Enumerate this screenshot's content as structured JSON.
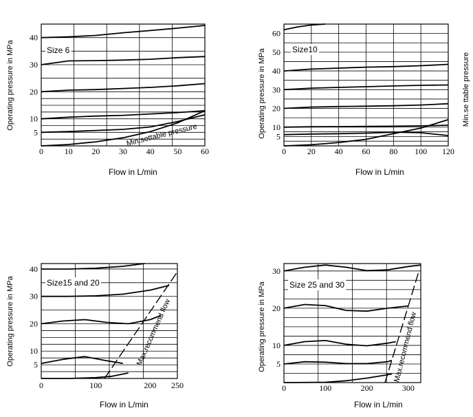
{
  "chart_data": [
    {
      "type": "line",
      "label": "Size 6",
      "xlabel": "Flow in L/min",
      "ylabel": "Operating pressure in MPa",
      "xlim": [
        0,
        60
      ],
      "ylim": [
        0,
        45
      ],
      "x_ticks": [
        0,
        10,
        20,
        30,
        40,
        50,
        60
      ],
      "y_ticks": [
        5,
        10,
        20,
        30,
        40
      ],
      "grid": true,
      "series": [
        {
          "x": [
            0,
            10,
            20,
            30,
            40,
            50,
            60
          ],
          "y": [
            40,
            40.3,
            40.8,
            41.8,
            42.6,
            43.5,
            44.5
          ]
        },
        {
          "x": [
            0,
            10,
            20,
            30,
            40,
            50,
            60
          ],
          "y": [
            30,
            31.4,
            31.5,
            31.7,
            32,
            32.6,
            33
          ]
        },
        {
          "x": [
            0,
            10,
            20,
            30,
            40,
            50,
            60
          ],
          "y": [
            20,
            20.6,
            20.8,
            21.2,
            21.6,
            22.2,
            23
          ]
        },
        {
          "x": [
            0,
            10,
            20,
            30,
            40,
            50,
            60
          ],
          "y": [
            10,
            10.6,
            11,
            11.3,
            11.8,
            12.3,
            13
          ]
        },
        {
          "x": [
            0,
            10,
            20,
            30,
            40,
            50,
            60
          ],
          "y": [
            5,
            5.3,
            5.7,
            6.1,
            7,
            9,
            11.5
          ]
        },
        {
          "x": [
            0,
            10,
            20,
            30,
            40,
            50,
            60
          ],
          "y": [
            0,
            0.5,
            1.5,
            3,
            5.3,
            8.5,
            13
          ]
        }
      ],
      "annotations": [
        {
          "text": "Min.settable pressure"
        }
      ]
    },
    {
      "type": "line",
      "label": "Size10",
      "xlabel": "Flow in L/min",
      "ylabel": "Operating pressure in MPa",
      "xlim": [
        0,
        120
      ],
      "ylim": [
        0,
        65
      ],
      "x_ticks": [
        0,
        20,
        40,
        60,
        80,
        100,
        120
      ],
      "y_ticks": [
        5,
        10,
        20,
        30,
        40,
        50,
        60
      ],
      "grid": true,
      "series": [
        {
          "x": [
            0,
            10,
            20,
            30
          ],
          "y": [
            62,
            63.5,
            64.5,
            65
          ]
        },
        {
          "x": [
            0,
            20,
            40,
            60,
            80,
            100,
            120
          ],
          "y": [
            40,
            41,
            41.5,
            42,
            42.3,
            42.8,
            43.5
          ]
        },
        {
          "x": [
            0,
            20,
            40,
            60,
            80,
            100,
            120
          ],
          "y": [
            30,
            30.8,
            31.2,
            31.6,
            32,
            32.3,
            32.5
          ]
        },
        {
          "x": [
            0,
            20,
            40,
            60,
            80,
            100,
            120
          ],
          "y": [
            20,
            20.7,
            21,
            21.2,
            21.4,
            21.8,
            22.5
          ]
        },
        {
          "x": [
            0,
            20,
            40,
            60,
            80,
            100,
            120
          ],
          "y": [
            10,
            10.2,
            10.3,
            10.4,
            10.5,
            10.7,
            11
          ]
        },
        {
          "x": [
            0,
            20,
            40,
            60,
            80,
            100,
            120
          ],
          "y": [
            6,
            6.3,
            6.5,
            6.8,
            7.3,
            7,
            5.5
          ]
        },
        {
          "x": [
            0,
            20,
            40,
            60,
            80,
            100,
            120
          ],
          "y": [
            0,
            0.6,
            1.8,
            3.5,
            6.5,
            9.5,
            14
          ]
        }
      ],
      "annotations": [
        {
          "text": "Min.se ttable pressure"
        }
      ]
    },
    {
      "type": "line",
      "label": "Size15 and 20",
      "xlabel": "Flow in L/min",
      "ylabel": "Operating pressure in MPa",
      "xlim": [
        0,
        250
      ],
      "ylim": [
        0,
        42
      ],
      "x_ticks": [
        0,
        100,
        200,
        250
      ],
      "y_ticks": [
        5,
        10,
        20,
        30,
        40
      ],
      "grid": true,
      "series": [
        {
          "x": [
            0,
            50,
            100,
            150,
            190
          ],
          "y": [
            40,
            40,
            40.3,
            41,
            42
          ]
        },
        {
          "x": [
            0,
            50,
            100,
            150,
            200,
            235
          ],
          "y": [
            30,
            30,
            30.2,
            30.8,
            32.3,
            34
          ]
        },
        {
          "x": [
            0,
            40,
            80,
            120,
            160,
            200,
            220
          ],
          "y": [
            20,
            21,
            21.5,
            20.5,
            20,
            21.5,
            23
          ]
        },
        {
          "x": [
            0,
            40,
            80,
            120,
            150
          ],
          "y": [
            5.5,
            7,
            8,
            6.5,
            5.5
          ]
        },
        {
          "x": [
            0,
            50,
            100,
            130,
            160
          ],
          "y": [
            0,
            0,
            0.3,
            0.8,
            2
          ]
        }
      ],
      "annotations": [
        {
          "text": "Max.recommend flow"
        }
      ]
    },
    {
      "type": "line",
      "label": "Size 25 and 30",
      "xlabel": "Flow in L/min",
      "ylabel": "Operating pressure in MPa",
      "xlim": [
        0,
        330
      ],
      "ylim": [
        0,
        32
      ],
      "x_ticks": [
        0,
        100,
        200,
        300
      ],
      "y_ticks": [
        5,
        10,
        20,
        30
      ],
      "grid": true,
      "series": [
        {
          "x": [
            0,
            50,
            100,
            150,
            200,
            250,
            300,
            330
          ],
          "y": [
            30,
            31,
            31.6,
            31,
            30.1,
            30.3,
            31.2,
            31.6
          ]
        },
        {
          "x": [
            0,
            50,
            100,
            150,
            200,
            250,
            300
          ],
          "y": [
            20,
            21,
            20.7,
            19.4,
            19.2,
            20,
            20.6
          ]
        },
        {
          "x": [
            0,
            50,
            100,
            150,
            200,
            250,
            270
          ],
          "y": [
            10,
            11,
            11.3,
            10.3,
            9.9,
            10.6,
            11
          ]
        },
        {
          "x": [
            0,
            50,
            100,
            150,
            200,
            250,
            260
          ],
          "y": [
            5,
            5.6,
            5.5,
            5.1,
            5.1,
            5.6,
            6
          ]
        },
        {
          "x": [
            0,
            100,
            150,
            200,
            260
          ],
          "y": [
            0,
            0.1,
            0.5,
            1.2,
            2.3
          ]
        }
      ],
      "annotations": [
        {
          "text": "Max.recommend flow"
        }
      ]
    }
  ]
}
